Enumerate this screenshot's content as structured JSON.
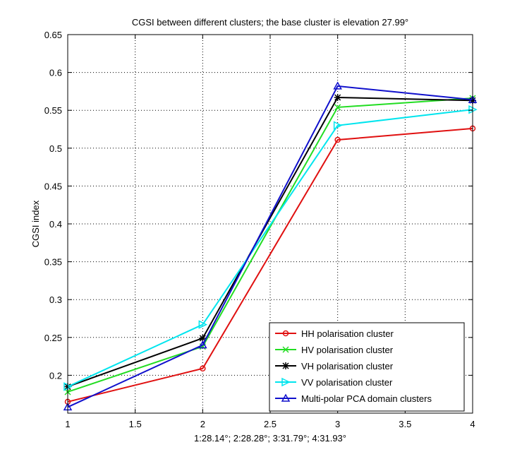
{
  "chart_data": {
    "type": "line",
    "title": "CGSI between different clusters; the base cluster is elevation 27.99°",
    "xlabel": "1:28.14°; 2:28.28°; 3:31.79°; 4:31.93°",
    "ylabel": "CGSI index",
    "x": [
      1,
      2,
      3,
      4
    ],
    "xlim": [
      1,
      4
    ],
    "ylim": [
      0.15,
      0.65
    ],
    "xticks": [
      "1",
      "1.5",
      "2",
      "2.5",
      "3",
      "3.5",
      "4"
    ],
    "yticks": [
      "0.2",
      "0.25",
      "0.3",
      "0.35",
      "0.4",
      "0.45",
      "0.5",
      "0.55",
      "0.6",
      "0.65"
    ],
    "grid": true,
    "legend_position": "bottom-right",
    "series": [
      {
        "name": "HH polarisation cluster",
        "color": "#e01010",
        "marker": "circle",
        "values": [
          0.165,
          0.209,
          0.511,
          0.526
        ]
      },
      {
        "name": "HV polarisation cluster",
        "color": "#22dd22",
        "marker": "x",
        "values": [
          0.178,
          0.238,
          0.554,
          0.566
        ]
      },
      {
        "name": "VH polarisation cluster",
        "color": "#000000",
        "marker": "star",
        "values": [
          0.185,
          0.249,
          0.567,
          0.563
        ]
      },
      {
        "name": "VV polarisation cluster",
        "color": "#00e5ee",
        "marker": "triangle-right",
        "values": [
          0.185,
          0.267,
          0.53,
          0.551
        ]
      },
      {
        "name": "Multi-polar PCA domain clusters",
        "color": "#1010cc",
        "marker": "triangle-up",
        "values": [
          0.158,
          0.24,
          0.582,
          0.564
        ]
      }
    ]
  }
}
